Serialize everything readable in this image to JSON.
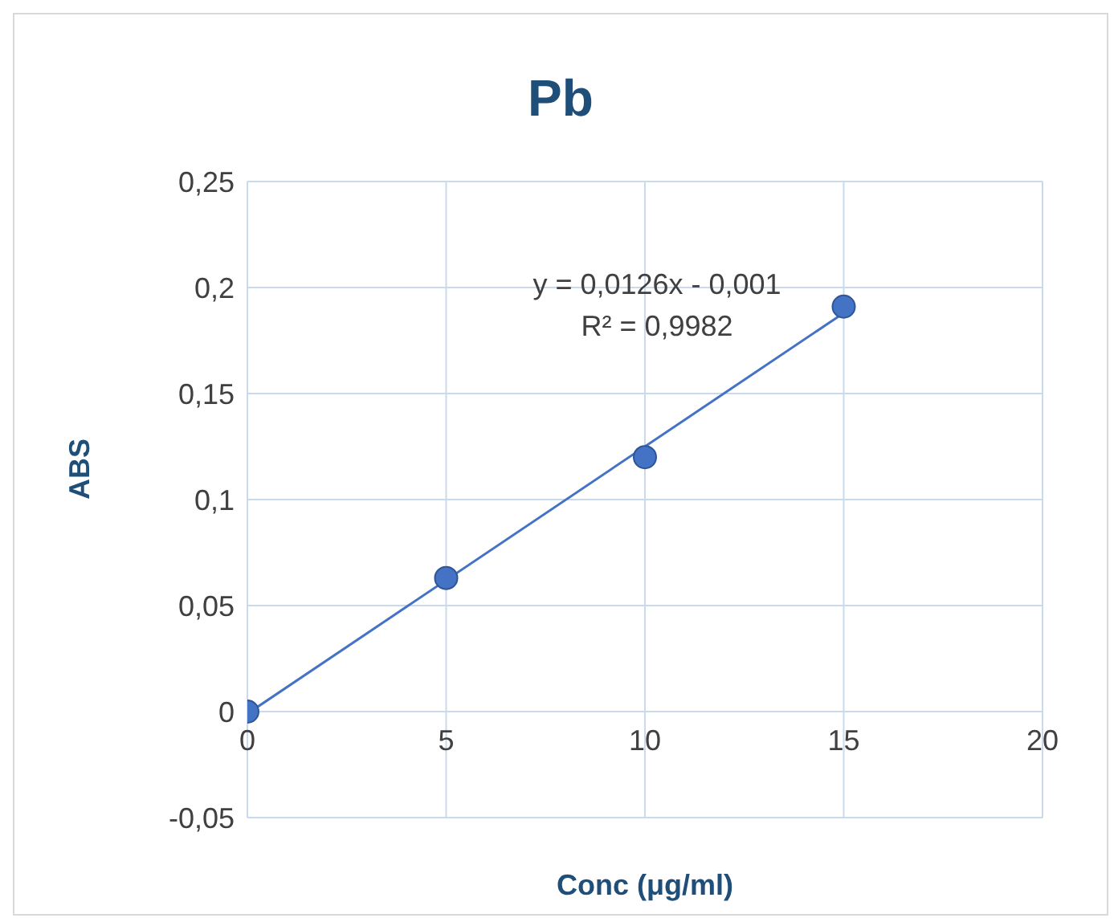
{
  "chart_data": {
    "type": "scatter",
    "title": "Pb",
    "xlabel": "Conc (μg/ml)",
    "ylabel": "ABS",
    "xlim": [
      0,
      20
    ],
    "xticks": [
      0,
      5,
      10,
      15,
      20
    ],
    "ylim": [
      -0.05,
      0.25
    ],
    "yticks": [
      {
        "value": -0.05,
        "label": "-0,05"
      },
      0,
      {
        "value": 0.05,
        "label": "0,05"
      },
      {
        "value": 0.1,
        "label": "0,1"
      },
      {
        "value": 0.15,
        "label": "0,15"
      },
      {
        "value": 0.2,
        "label": "0,2"
      },
      {
        "value": 0.25,
        "label": "0,25"
      }
    ],
    "grid": true,
    "series": [
      {
        "color": "#4472c4",
        "marker": "circle",
        "x": [
          0,
          5,
          10,
          15
        ],
        "values": [
          0,
          0.063,
          0.12,
          0.191
        ]
      },
      {
        "type": "line",
        "color": "#4472c4",
        "marker": "none",
        "x": [
          0,
          15
        ],
        "values": [
          -0.001,
          0.188
        ]
      }
    ],
    "annotations": [
      "y = 0,0126x - 0,001",
      "R² = 0,9982"
    ]
  }
}
